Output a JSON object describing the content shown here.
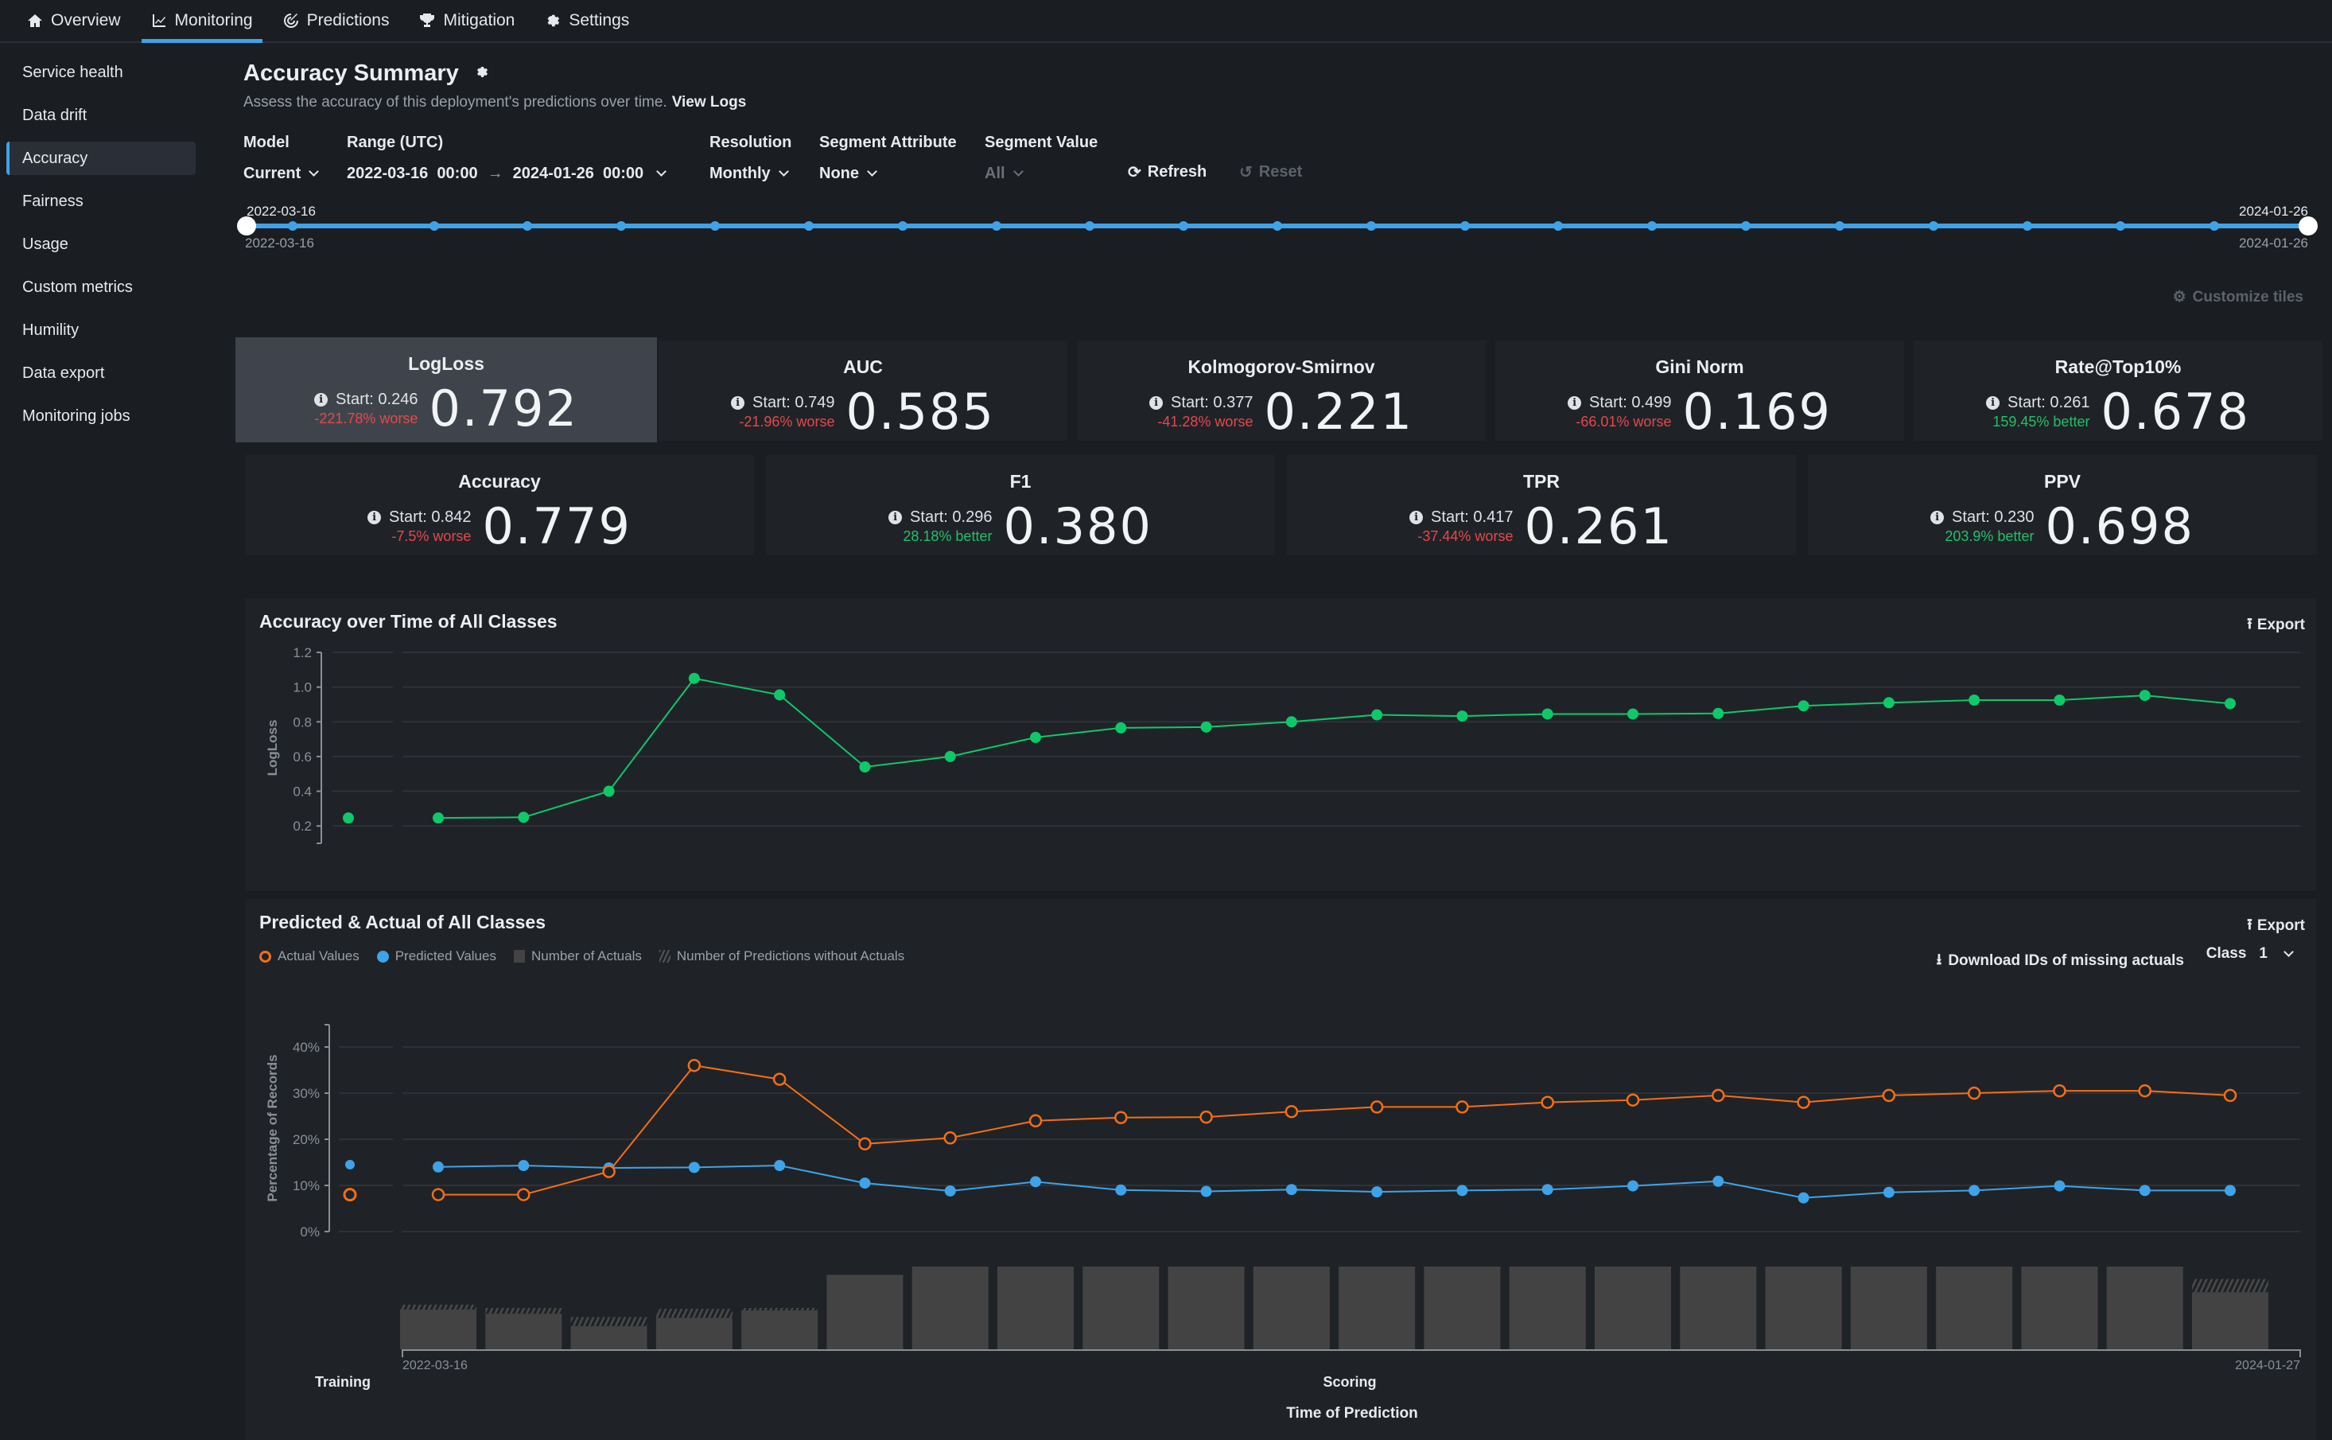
{
  "topnav": {
    "tabs": [
      {
        "label": "Overview",
        "icon": "home-icon",
        "active": false
      },
      {
        "label": "Monitoring",
        "icon": "chart-line-icon",
        "active": true
      },
      {
        "label": "Predictions",
        "icon": "target-icon",
        "active": false
      },
      {
        "label": "Mitigation",
        "icon": "trophy-icon",
        "active": false
      },
      {
        "label": "Settings",
        "icon": "gear-icon",
        "active": false
      }
    ]
  },
  "sidebar": {
    "items": [
      {
        "label": "Service health"
      },
      {
        "label": "Data drift"
      },
      {
        "label": "Accuracy",
        "active": true
      },
      {
        "label": "Fairness"
      },
      {
        "label": "Usage"
      },
      {
        "label": "Custom metrics"
      },
      {
        "label": "Humility"
      },
      {
        "label": "Data export"
      },
      {
        "label": "Monitoring jobs"
      }
    ]
  },
  "header": {
    "title": "Accuracy Summary",
    "subtitle": "Assess the accuracy of this deployment's predictions over time.",
    "view_logs": "View Logs"
  },
  "filters": {
    "model_label": "Model",
    "model_value": "Current",
    "range_label": "Range (UTC)",
    "range_start": "2022-03-16  00:00",
    "range_arrow": "→",
    "range_end": "2024-01-26  00:00",
    "resolution_label": "Resolution",
    "resolution_value": "Monthly",
    "segment_attr_label": "Segment Attribute",
    "segment_attr_value": "None",
    "segment_value_label": "Segment Value",
    "segment_value_value": "All",
    "refresh": "Refresh",
    "reset": "Reset"
  },
  "range_slider": {
    "start_label_top": "2022-03-16",
    "start_label_bottom": "2022-03-16",
    "end_label_top": "2024-01-26",
    "end_label_bottom": "2024-01-26",
    "tick_count": 23
  },
  "customize_tiles": "Customize tiles",
  "tiles_row1": [
    {
      "name": "LogLoss",
      "start": "Start: 0.246",
      "delta": "-221.78% worse",
      "status": "worse",
      "value": "0.792",
      "active": true
    },
    {
      "name": "AUC",
      "start": "Start: 0.749",
      "delta": "-21.96% worse",
      "status": "worse",
      "value": "0.585"
    },
    {
      "name": "Kolmogorov-Smirnov",
      "start": "Start: 0.377",
      "delta": "-41.28% worse",
      "status": "worse",
      "value": "0.221"
    },
    {
      "name": "Gini Norm",
      "start": "Start: 0.499",
      "delta": "-66.01% worse",
      "status": "worse",
      "value": "0.169"
    },
    {
      "name": "Rate@Top10%",
      "start": "Start: 0.261",
      "delta": "159.45% better",
      "status": "better",
      "value": "0.678"
    }
  ],
  "tiles_row2": [
    {
      "name": "Accuracy",
      "start": "Start: 0.842",
      "delta": "-7.5% worse",
      "status": "worse",
      "value": "0.779"
    },
    {
      "name": "F1",
      "start": "Start: 0.296",
      "delta": "28.18% better",
      "status": "better",
      "value": "0.380"
    },
    {
      "name": "TPR",
      "start": "Start: 0.417",
      "delta": "-37.44% worse",
      "status": "worse",
      "value": "0.261"
    },
    {
      "name": "PPV",
      "start": "Start: 0.230",
      "delta": "203.9% better",
      "status": "better",
      "value": "0.698"
    }
  ],
  "colors": {
    "accent": "#3ea3e8",
    "worse": "#e5484d",
    "better": "#21c06a",
    "logloss_line": "#0fc86a",
    "actual": "#f46e16",
    "predicted": "#3ea3e8",
    "bar": "#434343"
  },
  "panel1": {
    "title": "Accuracy over Time of All Classes",
    "export": "Export"
  },
  "panel2": {
    "title": "Predicted & Actual of All Classes",
    "export": "Export",
    "download": "Download IDs of missing actuals",
    "class_label": "Class",
    "class_value": "1",
    "legend": [
      "Actual Values",
      "Predicted Values",
      "Number of Actuals",
      "Number of Predictions without Actuals"
    ]
  },
  "chart_data": [
    {
      "type": "line",
      "title": "Accuracy over Time of All Classes",
      "ylabel": "LogLoss",
      "ylim": [
        0.1,
        1.2
      ],
      "yticks": [
        "0.2",
        "0.4",
        "0.6",
        "0.8",
        "1.0",
        "1.2"
      ],
      "grid": true,
      "training": {
        "value": 0.246
      },
      "series": [
        {
          "name": "LogLoss",
          "values": [
            0.246,
            0.25,
            0.4,
            1.05,
            0.955,
            0.54,
            0.6,
            0.71,
            0.765,
            0.77,
            0.8,
            0.84,
            0.833,
            0.845,
            0.845,
            0.848,
            0.892,
            0.91,
            0.925,
            0.925,
            0.952,
            0.905
          ]
        }
      ]
    },
    {
      "type": "line",
      "title": "Predicted & Actual of All Classes",
      "ylabel": "Percentage of Records",
      "xlabel": "Time of Prediction",
      "ylim": [
        0,
        45
      ],
      "yticks": [
        "0%",
        "10%",
        "20%",
        "30%",
        "40%"
      ],
      "x_start_label": "2022-03-16",
      "x_end_label": "2024-01-27",
      "training_label": "Training",
      "scoring_label": "Scoring",
      "grid": true,
      "legend": "top-left",
      "training": {
        "actual": 8,
        "predicted": 14.5
      },
      "series": [
        {
          "name": "Actual Values",
          "values": [
            8,
            8,
            13,
            36,
            33,
            19,
            20.3,
            24,
            24.7,
            24.8,
            26,
            27,
            27,
            28,
            28.5,
            29.5,
            28,
            29.5,
            30,
            30.5,
            30.5,
            29.5
          ]
        },
        {
          "name": "Predicted Values",
          "values": [
            14,
            14.3,
            13.8,
            13.9,
            14.3,
            10.5,
            8.8,
            10.8,
            9,
            8.7,
            9.1,
            8.6,
            8.9,
            9.1,
            9.9,
            10.9,
            7.3,
            8.5,
            8.9,
            9.9,
            8.9,
            8.9
          ]
        }
      ],
      "bars": {
        "name": "Number of Actuals",
        "relative_values": [
          0.48,
          0.43,
          0.28,
          0.38,
          0.47,
          0.9,
          1.0,
          1.0,
          1.0,
          1.0,
          1.0,
          1.0,
          1.0,
          1.0,
          1.0,
          1.0,
          1.0,
          1.0,
          1.0,
          1.0,
          1.0,
          0.69
        ],
        "missing_relative": [
          0.06,
          0.07,
          0.11,
          0.11,
          0.03,
          0,
          0,
          0,
          0,
          0,
          0,
          0,
          0,
          0,
          0,
          0,
          0,
          0,
          0,
          0,
          0,
          0.16
        ]
      }
    }
  ]
}
